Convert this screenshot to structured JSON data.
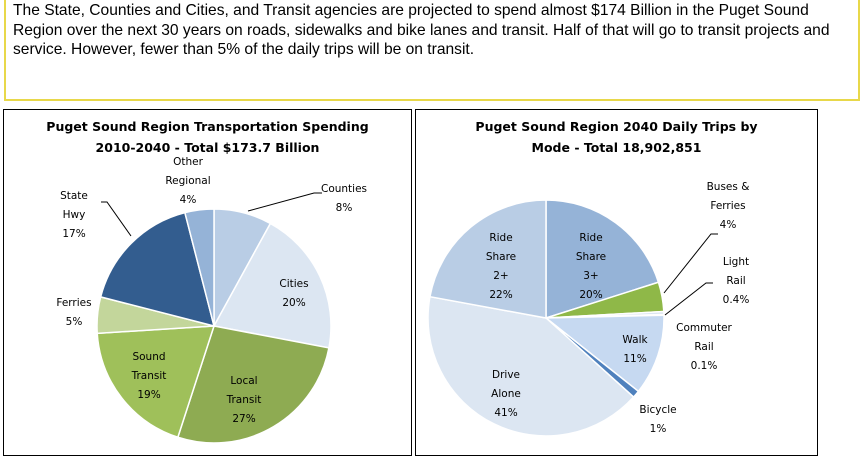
{
  "intro_text": "The State, Counties and Cities, and Transit agencies are projected to spend almost $174 Billion in the Puget Sound Region over the next 30 years on roads, sidewalks and bike lanes and transit. Half of that will go to transit projects and service.  However, fewer than 5% of the daily trips will be on transit.",
  "chart_data": [
    {
      "type": "pie",
      "title": "Puget Sound Region Transportation Spending 2010-2040 - Total $173.7 Billion",
      "slices": [
        {
          "label": "Counties",
          "pct_label": "8%",
          "value": 8,
          "color": "#b9cde5"
        },
        {
          "label": "Cities",
          "pct_label": "20%",
          "value": 20,
          "color": "#dce6f2"
        },
        {
          "label": "Local Transit",
          "pct_label": "27%",
          "value": 27,
          "color": "#8eab52"
        },
        {
          "label": "Sound Transit",
          "pct_label": "19%",
          "value": 19,
          "color": "#9fc05a"
        },
        {
          "label": "Ferries",
          "pct_label": "5%",
          "value": 5,
          "color": "#c3d69b"
        },
        {
          "label": "State Hwy",
          "pct_label": "17%",
          "value": 17,
          "color": "#335d8f"
        },
        {
          "label": "Other Regional",
          "pct_label": "4%",
          "value": 4,
          "color": "#95b3d7"
        }
      ]
    },
    {
      "type": "pie",
      "title": "Puget Sound Region 2040 Daily Trips by Mode - Total 18,902,851",
      "slices": [
        {
          "label": "Ride Share 3+",
          "pct_label": "20%",
          "value": 20,
          "color": "#95b3d7"
        },
        {
          "label": "Buses & Ferries",
          "pct_label": "4%",
          "value": 4,
          "color": "#8fb848"
        },
        {
          "label": "Light Rail",
          "pct_label": "0.4%",
          "value": 0.4,
          "color": "#dce6f2"
        },
        {
          "label": "Commuter Rail",
          "pct_label": "0.1%",
          "value": 0.1,
          "color": "#95b3d7"
        },
        {
          "label": "Walk",
          "pct_label": "11%",
          "value": 11,
          "color": "#c6d9f1"
        },
        {
          "label": "Bicycle",
          "pct_label": "1%",
          "value": 1,
          "color": "#4f81bd"
        },
        {
          "label": "Drive Alone",
          "pct_label": "41%",
          "value": 41,
          "color": "#dce6f2"
        },
        {
          "label": "Ride Share 2+",
          "pct_label": "22%",
          "value": 22,
          "color": "#b9cde5"
        }
      ]
    }
  ]
}
